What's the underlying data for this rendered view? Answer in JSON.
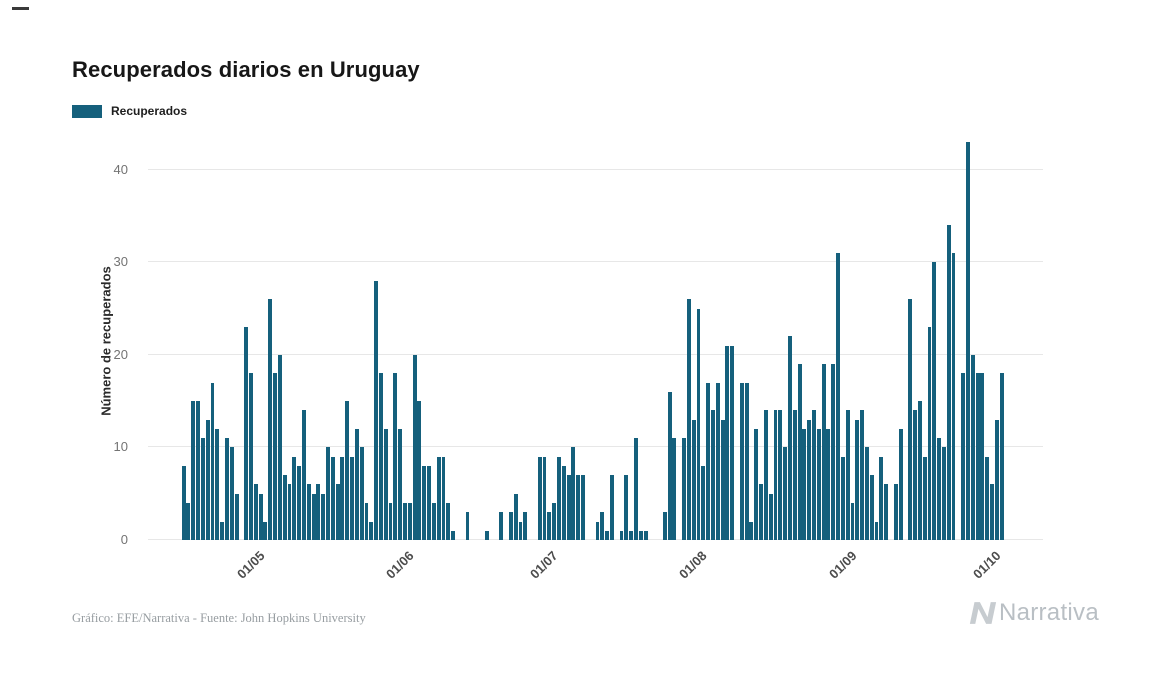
{
  "page": {
    "title": "Recuperados diarios en Uruguay",
    "footer_credit": "Gráfico: EFE/Narrativa - Fuente: John Hopkins University",
    "brand": "Narrativa"
  },
  "legend": {
    "label": "Recuperados"
  },
  "chart_data": {
    "type": "bar",
    "title": "Recuperados diarios en Uruguay",
    "xlabel": "",
    "ylabel": "Número de recuperados",
    "ylim": [
      0,
      43
    ],
    "y_ticks": [
      0,
      10,
      20,
      30,
      40
    ],
    "grid": "horizontal",
    "legend_position": "top-left",
    "x_ticks": [
      {
        "label": "01/05",
        "index": 20
      },
      {
        "label": "01/06",
        "index": 51
      },
      {
        "label": "01/07",
        "index": 81
      },
      {
        "label": "01/08",
        "index": 112
      },
      {
        "label": "01/09",
        "index": 143
      },
      {
        "label": "01/10",
        "index": 173
      }
    ],
    "series": [
      {
        "name": "Recuperados",
        "color": "#15607c",
        "values": [
          0,
          0,
          0,
          0,
          0,
          0,
          0,
          8,
          4,
          15,
          15,
          11,
          13,
          17,
          12,
          2,
          11,
          10,
          5,
          0,
          23,
          18,
          6,
          5,
          2,
          26,
          18,
          20,
          7,
          6,
          9,
          8,
          14,
          6,
          5,
          6,
          5,
          10,
          9,
          6,
          9,
          15,
          9,
          12,
          10,
          4,
          2,
          28,
          18,
          12,
          4,
          18,
          12,
          4,
          4,
          20,
          15,
          8,
          8,
          4,
          9,
          9,
          4,
          1,
          0,
          0,
          3,
          0,
          0,
          0,
          1,
          0,
          0,
          3,
          0,
          3,
          5,
          2,
          3,
          0,
          0,
          9,
          9,
          3,
          4,
          9,
          8,
          7,
          10,
          7,
          7,
          0,
          0,
          2,
          3,
          1,
          7,
          0,
          1,
          7,
          1,
          11,
          1,
          1,
          0,
          0,
          0,
          3,
          16,
          11,
          0,
          11,
          26,
          13,
          25,
          8,
          17,
          14,
          17,
          13,
          21,
          21,
          0,
          17,
          17,
          2,
          12,
          6,
          14,
          5,
          14,
          14,
          10,
          22,
          14,
          19,
          12,
          13,
          14,
          12,
          19,
          12,
          19,
          31,
          9,
          14,
          4,
          13,
          14,
          10,
          7,
          2,
          9,
          6,
          0,
          6,
          12,
          0,
          26,
          14,
          15,
          9,
          23,
          30,
          11,
          10,
          34,
          31,
          0,
          18,
          43,
          20,
          18,
          18,
          9,
          6,
          13,
          18,
          0,
          0,
          0,
          0,
          0,
          0,
          0,
          0
        ]
      }
    ]
  }
}
